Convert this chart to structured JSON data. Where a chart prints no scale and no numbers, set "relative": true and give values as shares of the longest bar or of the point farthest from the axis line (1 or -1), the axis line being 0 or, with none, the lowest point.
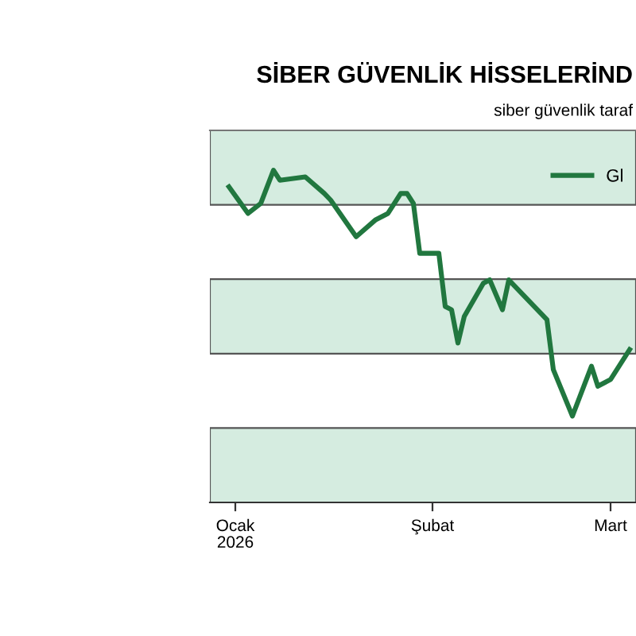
{
  "chart_data": {
    "type": "line",
    "title": "SİBER GÜVENLİK HİSSELERİND",
    "subtitle": "siber güvenlik taraf",
    "relative": true,
    "legend": "top right",
    "x": [
      "2025-12-31",
      "2026-01-03",
      "2026-01-05",
      "2026-01-07",
      "2026-01-08",
      "2026-01-12",
      "2026-01-15",
      "2026-01-16",
      "2026-01-20",
      "2026-01-23",
      "2026-01-25",
      "2026-01-27",
      "2026-01-28",
      "2026-01-29",
      "2026-01-30",
      "2026-02-02",
      "2026-02-03",
      "2026-02-04",
      "2026-02-05",
      "2026-02-06",
      "2026-02-09",
      "2026-02-10",
      "2026-02-12",
      "2026-02-13",
      "2026-02-19",
      "2026-02-20",
      "2026-02-23",
      "2026-02-26",
      "2026-02-27",
      "2026-03-01",
      "2026-03-04"
    ],
    "series": [
      {
        "name": "Gl",
        "color": "#21773f",
        "values": [
          0.95,
          0.87,
          0.9,
          1.0,
          0.97,
          0.98,
          0.93,
          0.91,
          0.8,
          0.85,
          0.87,
          0.93,
          0.93,
          0.9,
          0.75,
          0.75,
          0.59,
          0.58,
          0.48,
          0.56,
          0.66,
          0.67,
          0.58,
          0.67,
          0.55,
          0.4,
          0.26,
          0.41,
          0.35,
          0.37,
          0.46
        ]
      }
    ],
    "xlim": [
      "2025-12-28",
      "2026-03-05"
    ],
    "xticks": [
      {
        "value": "2026-01-01",
        "label": "Ocak\n2026"
      },
      {
        "value": "2026-02-01",
        "label": "Şubat"
      },
      {
        "value": "2026-03-01",
        "label": "Mart"
      }
    ]
  }
}
